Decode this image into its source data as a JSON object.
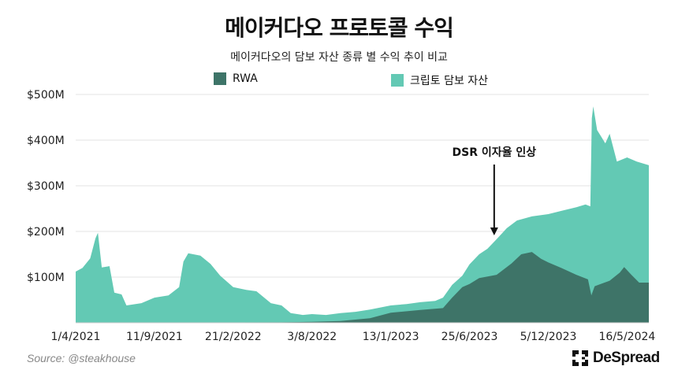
{
  "chart_data": {
    "type": "area",
    "stacked": false,
    "title": "메이커다오 프로토콜 수익",
    "subtitle": "메이커다오의 담보 자산 종류 별 수익 추이 비교",
    "xlabel": "",
    "ylabel": "",
    "ylim": [
      0,
      500
    ],
    "y_unit": "$M",
    "y_ticks": [
      "$100M",
      "$200M",
      "$300M",
      "$400M",
      "$500M"
    ],
    "y_tick_values": [
      100,
      200,
      300,
      400,
      500
    ],
    "x_ticks": [
      "1/4/2021",
      "11/9/2021",
      "21/2/2022",
      "3/8/2022",
      "13/1/2023",
      "25/6/2023",
      "5/12/2023",
      "16/5/2024"
    ],
    "x_tick_dates": [
      "2021-04-01",
      "2021-09-11",
      "2022-02-21",
      "2022-08-03",
      "2023-01-13",
      "2023-06-25",
      "2023-12-05",
      "2024-05-16"
    ],
    "xlim": [
      "2021-04-01",
      "2024-06-30"
    ],
    "grid": true,
    "legend_position": "top",
    "series": [
      {
        "name": "크립토 담보 자산",
        "color": "#63c9b4",
        "points": [
          [
            "2021-04-01",
            112
          ],
          [
            "2021-04-15",
            120
          ],
          [
            "2021-05-01",
            141
          ],
          [
            "2021-05-12",
            185
          ],
          [
            "2021-05-17",
            197
          ],
          [
            "2021-05-25",
            121
          ],
          [
            "2021-06-10",
            124
          ],
          [
            "2021-06-20",
            66
          ],
          [
            "2021-07-05",
            62
          ],
          [
            "2021-07-15",
            38
          ],
          [
            "2021-08-15",
            43
          ],
          [
            "2021-09-11",
            55
          ],
          [
            "2021-10-10",
            60
          ],
          [
            "2021-11-01",
            78
          ],
          [
            "2021-11-10",
            134
          ],
          [
            "2021-11-20",
            152
          ],
          [
            "2021-12-15",
            147
          ],
          [
            "2022-01-05",
            129
          ],
          [
            "2022-01-25",
            103
          ],
          [
            "2022-02-21",
            78
          ],
          [
            "2022-03-20",
            72
          ],
          [
            "2022-04-10",
            69
          ],
          [
            "2022-05-10",
            43
          ],
          [
            "2022-06-01",
            38
          ],
          [
            "2022-06-20",
            21
          ],
          [
            "2022-07-15",
            17
          ],
          [
            "2022-08-03",
            19
          ],
          [
            "2022-09-01",
            17
          ],
          [
            "2022-10-01",
            21
          ],
          [
            "2022-11-01",
            24
          ],
          [
            "2022-12-01",
            29
          ],
          [
            "2023-01-13",
            38
          ],
          [
            "2023-02-15",
            41
          ],
          [
            "2023-03-15",
            45
          ],
          [
            "2023-04-15",
            48
          ],
          [
            "2023-05-01",
            55
          ],
          [
            "2023-05-20",
            83
          ],
          [
            "2023-06-10",
            103
          ],
          [
            "2023-06-25",
            128
          ],
          [
            "2023-07-15",
            150
          ],
          [
            "2023-08-01",
            162
          ],
          [
            "2023-08-20",
            183
          ],
          [
            "2023-09-10",
            207
          ],
          [
            "2023-10-01",
            224
          ],
          [
            "2023-11-01",
            233
          ],
          [
            "2023-12-05",
            238
          ],
          [
            "2024-01-01",
            245
          ],
          [
            "2024-02-01",
            253
          ],
          [
            "2024-02-20",
            259
          ],
          [
            "2024-03-01",
            255
          ],
          [
            "2024-03-04",
            448
          ],
          [
            "2024-03-07",
            474
          ],
          [
            "2024-03-15",
            422
          ],
          [
            "2024-04-01",
            393
          ],
          [
            "2024-04-10",
            414
          ],
          [
            "2024-04-25",
            353
          ],
          [
            "2024-05-16",
            362
          ],
          [
            "2024-06-05",
            353
          ],
          [
            "2024-06-30",
            345
          ]
        ]
      },
      {
        "name": "RWA",
        "color": "#3e7468",
        "points": [
          [
            "2021-04-01",
            0
          ],
          [
            "2022-06-01",
            1
          ],
          [
            "2022-08-03",
            2
          ],
          [
            "2022-10-01",
            4
          ],
          [
            "2022-12-01",
            10
          ],
          [
            "2023-01-13",
            22
          ],
          [
            "2023-03-15",
            28
          ],
          [
            "2023-05-01",
            32
          ],
          [
            "2023-05-20",
            55
          ],
          [
            "2023-06-10",
            78
          ],
          [
            "2023-06-25",
            85
          ],
          [
            "2023-07-15",
            98
          ],
          [
            "2023-08-20",
            105
          ],
          [
            "2023-09-20",
            130
          ],
          [
            "2023-10-10",
            150
          ],
          [
            "2023-11-01",
            155
          ],
          [
            "2023-11-20",
            140
          ],
          [
            "2023-12-05",
            132
          ],
          [
            "2024-01-01",
            120
          ],
          [
            "2024-02-01",
            105
          ],
          [
            "2024-02-25",
            95
          ],
          [
            "2024-03-03",
            60
          ],
          [
            "2024-03-10",
            80
          ],
          [
            "2024-04-10",
            92
          ],
          [
            "2024-05-01",
            110
          ],
          [
            "2024-05-10",
            122
          ],
          [
            "2024-05-25",
            105
          ],
          [
            "2024-06-10",
            88
          ],
          [
            "2024-06-30",
            88
          ]
        ]
      }
    ],
    "annotations": [
      {
        "text": "DSR 이자율 인상",
        "date": "2023-08-15",
        "arrow": "down"
      }
    ]
  },
  "legend": {
    "rwa": "RWA",
    "crypto": "크립토 담보 자산"
  },
  "source": "Source: @steakhouse",
  "logo_text": "DeSpread"
}
